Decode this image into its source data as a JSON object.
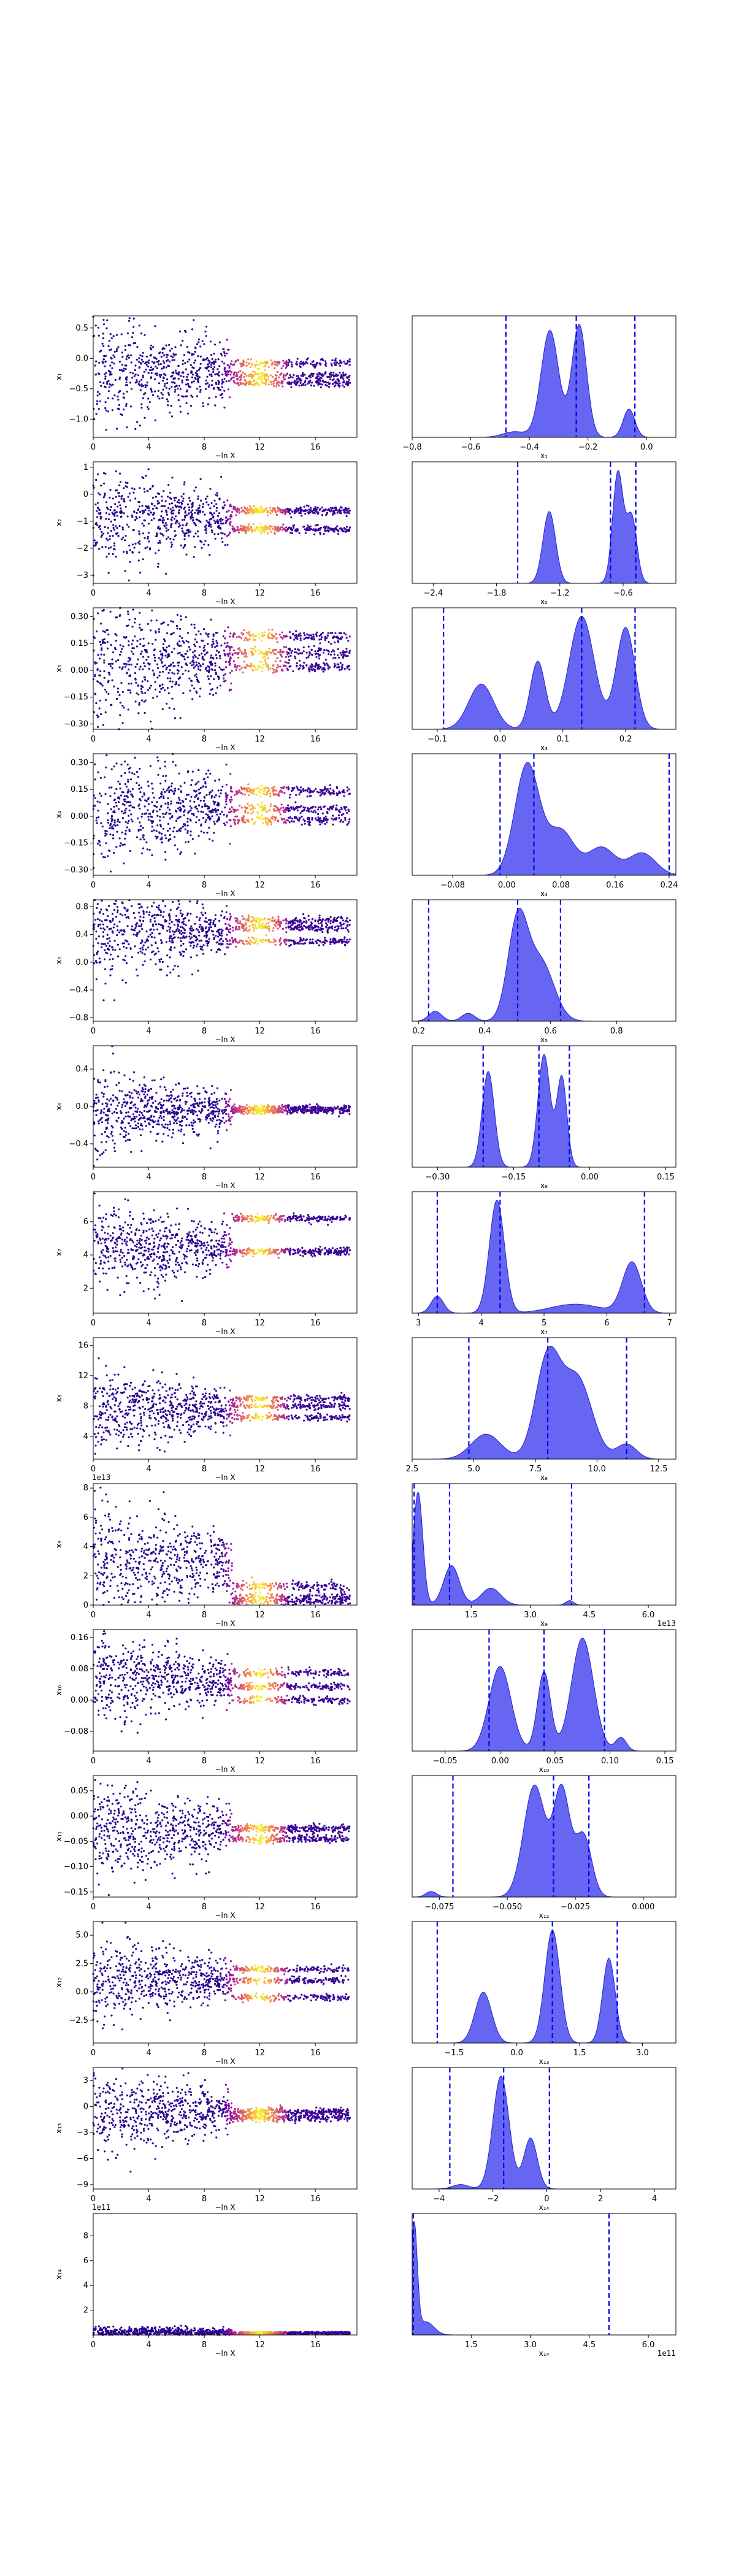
{
  "figure": {
    "background": "#ffffff",
    "scatter_colormap": [
      "#0d0887",
      "#6a00a8",
      "#b12a90",
      "#e16462",
      "#fca636",
      "#f0f921"
    ],
    "kde_fill": "#4b4bf0",
    "kde_line": "#2020d0",
    "vline_color": "#0000ee"
  },
  "chart_data": [
    {
      "row": 1,
      "type": "scatter",
      "xlabel": "−ln X",
      "ylabel": "x₁",
      "xticks": [
        "0",
        "4",
        "8",
        "12",
        "16"
      ],
      "xlim": [
        0,
        19
      ],
      "yticks": [
        "−1.0",
        "−0.5",
        "0.0",
        "0.5"
      ],
      "yticks_v": [
        -1.0,
        -0.5,
        0.0,
        0.5
      ],
      "ylim": [
        -1.3,
        0.7
      ],
      "center": -0.22,
      "spread": 0.45,
      "bands": [
        -0.08,
        -0.28,
        -0.4
      ],
      "seed": 11
    },
    {
      "row": 1,
      "type": "area",
      "xlabel": "x₁",
      "xticks": [
        "−0.8",
        "−0.6",
        "−0.4",
        "−0.2",
        "0.0"
      ],
      "xticks_v": [
        -0.8,
        -0.6,
        -0.4,
        -0.2,
        0.0
      ],
      "xlim": [
        -0.8,
        0.1
      ],
      "peaks": [
        {
          "mu": -0.33,
          "sd": 0.03,
          "h": 0.95
        },
        {
          "mu": -0.23,
          "sd": 0.025,
          "h": 1.0
        },
        {
          "mu": -0.06,
          "sd": 0.02,
          "h": 0.25
        },
        {
          "mu": -0.45,
          "sd": 0.04,
          "h": 0.05
        }
      ],
      "vlines": [
        -0.48,
        -0.24,
        -0.04
      ]
    },
    {
      "row": 2,
      "type": "scatter",
      "xlabel": "−ln X",
      "ylabel": "x₂",
      "xticks": [
        "0",
        "4",
        "8",
        "12",
        "16"
      ],
      "xlim": [
        0,
        19
      ],
      "yticks": [
        "−3",
        "−2",
        "−1",
        "0",
        "1"
      ],
      "yticks_v": [
        -3,
        -2,
        -1,
        0,
        1
      ],
      "ylim": [
        -3.3,
        1.2
      ],
      "center": -0.9,
      "spread": 0.9,
      "bands": [
        -0.6,
        -1.3
      ],
      "seed": 22
    },
    {
      "row": 2,
      "type": "area",
      "xlabel": "x₂",
      "xticks": [
        "−2.4",
        "−1.8",
        "−1.2",
        "−0.6"
      ],
      "xticks_v": [
        -2.4,
        -1.8,
        -1.2,
        -0.6
      ],
      "xlim": [
        -2.6,
        -0.1
      ],
      "peaks": [
        {
          "mu": -1.3,
          "sd": 0.06,
          "h": 0.65
        },
        {
          "mu": -0.65,
          "sd": 0.05,
          "h": 1.0
        },
        {
          "mu": -0.52,
          "sd": 0.05,
          "h": 0.6
        }
      ],
      "vlines": [
        -1.6,
        -0.72,
        -0.48
      ]
    },
    {
      "row": 3,
      "type": "scatter",
      "xlabel": "−ln X",
      "ylabel": "x₃",
      "xticks": [
        "0",
        "4",
        "8",
        "12",
        "16"
      ],
      "xlim": [
        0,
        19
      ],
      "yticks": [
        "−0.30",
        "−0.15",
        "0.00",
        "0.15",
        "0.30"
      ],
      "yticks_v": [
        -0.3,
        -0.15,
        0,
        0.15,
        0.3
      ],
      "ylim": [
        -0.33,
        0.35
      ],
      "center": 0.06,
      "spread": 0.2,
      "bands": [
        0.1,
        0.19,
        0.02
      ],
      "seed": 33
    },
    {
      "row": 3,
      "type": "area",
      "xlabel": "x₃",
      "xticks": [
        "−0.1",
        "0.0",
        "0.1",
        "0.2"
      ],
      "xticks_v": [
        -0.1,
        0,
        0.1,
        0.2
      ],
      "xlim": [
        -0.14,
        0.28
      ],
      "peaks": [
        {
          "mu": -0.03,
          "sd": 0.02,
          "h": 0.4
        },
        {
          "mu": 0.06,
          "sd": 0.012,
          "h": 0.6
        },
        {
          "mu": 0.13,
          "sd": 0.02,
          "h": 1.0
        },
        {
          "mu": 0.2,
          "sd": 0.015,
          "h": 0.9
        }
      ],
      "vlines": [
        -0.09,
        0.13,
        0.215
      ]
    },
    {
      "row": 4,
      "type": "scatter",
      "xlabel": "−ln X",
      "ylabel": "x₄",
      "xticks": [
        "0",
        "4",
        "8",
        "12",
        "16"
      ],
      "xlim": [
        0,
        19
      ],
      "yticks": [
        "−0.30",
        "−0.15",
        "0.00",
        "0.15",
        "0.30"
      ],
      "yticks_v": [
        -0.3,
        -0.15,
        0,
        0.15,
        0.3
      ],
      "ylim": [
        -0.33,
        0.35
      ],
      "center": 0.04,
      "spread": 0.17,
      "bands": [
        0.14,
        0.04,
        -0.02
      ],
      "seed": 44
    },
    {
      "row": 4,
      "type": "area",
      "xlabel": "x₄",
      "xticks": [
        "−0.08",
        "0.00",
        "0.08",
        "0.16",
        "0.24"
      ],
      "xticks_v": [
        -0.08,
        0,
        0.08,
        0.16,
        0.24
      ],
      "xlim": [
        -0.14,
        0.25
      ],
      "peaks": [
        {
          "mu": 0.03,
          "sd": 0.018,
          "h": 1.0
        },
        {
          "mu": 0.08,
          "sd": 0.02,
          "h": 0.4
        },
        {
          "mu": 0.14,
          "sd": 0.02,
          "h": 0.25
        },
        {
          "mu": 0.2,
          "sd": 0.02,
          "h": 0.2
        }
      ],
      "vlines": [
        -0.01,
        0.04,
        0.24
      ]
    },
    {
      "row": 5,
      "type": "scatter",
      "xlabel": "−ln X",
      "ylabel": "x₅",
      "xticks": [
        "0",
        "4",
        "8",
        "12",
        "16"
      ],
      "xlim": [
        0,
        19
      ],
      "yticks": [
        "−0.8",
        "−0.4",
        "0.0",
        "0.4",
        "0.8"
      ],
      "yticks_v": [
        -0.8,
        -0.4,
        0,
        0.4,
        0.8
      ],
      "ylim": [
        -0.85,
        0.9
      ],
      "center": 0.45,
      "spread": 0.35,
      "bands": [
        0.5,
        0.6,
        0.3
      ],
      "seed": 55
    },
    {
      "row": 5,
      "type": "area",
      "xlabel": "x₅",
      "xticks": [
        "0.2",
        "0.4",
        "0.6",
        "0.8"
      ],
      "xticks_v": [
        0.2,
        0.4,
        0.6,
        0.8
      ],
      "xlim": [
        0.18,
        0.98
      ],
      "peaks": [
        {
          "mu": 0.5,
          "sd": 0.03,
          "h": 1.0
        },
        {
          "mu": 0.57,
          "sd": 0.04,
          "h": 0.6
        },
        {
          "mu": 0.25,
          "sd": 0.02,
          "h": 0.1
        },
        {
          "mu": 0.35,
          "sd": 0.02,
          "h": 0.08
        }
      ],
      "vlines": [
        0.23,
        0.5,
        0.63
      ]
    },
    {
      "row": 6,
      "type": "scatter",
      "xlabel": "−ln X",
      "ylabel": "x₆",
      "xticks": [
        "0",
        "4",
        "8",
        "12",
        "16"
      ],
      "xlim": [
        0,
        19
      ],
      "yticks": [
        "−0.4",
        "0.0",
        "0.4"
      ],
      "yticks_v": [
        -0.4,
        0,
        0.4
      ],
      "ylim": [
        -0.65,
        0.65
      ],
      "center": -0.05,
      "spread": 0.22,
      "bands": [
        -0.02,
        -0.05
      ],
      "seed": 66
    },
    {
      "row": 6,
      "type": "area",
      "xlabel": "x₆",
      "xticks": [
        "−0.30",
        "−0.15",
        "0.00",
        "0.15"
      ],
      "xticks_v": [
        -0.3,
        -0.15,
        0,
        0.15
      ],
      "xlim": [
        -0.35,
        0.17
      ],
      "peaks": [
        {
          "mu": -0.2,
          "sd": 0.012,
          "h": 0.85
        },
        {
          "mu": -0.09,
          "sd": 0.012,
          "h": 1.0
        },
        {
          "mu": -0.055,
          "sd": 0.01,
          "h": 0.8
        }
      ],
      "vlines": [
        -0.21,
        -0.1,
        -0.04
      ]
    },
    {
      "row": 7,
      "type": "scatter",
      "xlabel": "−ln X",
      "ylabel": "x₇",
      "xticks": [
        "0",
        "4",
        "8",
        "12",
        "16"
      ],
      "xlim": [
        0,
        19
      ],
      "yticks": [
        "2",
        "4",
        "6"
      ],
      "yticks_v": [
        2,
        4,
        6
      ],
      "ylim": [
        0.5,
        7.8
      ],
      "center": 4.4,
      "spread": 1.4,
      "bands": [
        6.2,
        4.2
      ],
      "seed": 77
    },
    {
      "row": 7,
      "type": "area",
      "xlabel": "x₇",
      "xticks": [
        "3",
        "4",
        "5",
        "6",
        "7"
      ],
      "xticks_v": [
        3,
        4,
        5,
        6,
        7
      ],
      "xlim": [
        2.9,
        7.1
      ],
      "peaks": [
        {
          "mu": 4.25,
          "sd": 0.12,
          "h": 1.0
        },
        {
          "mu": 6.4,
          "sd": 0.15,
          "h": 0.45
        },
        {
          "mu": 3.3,
          "sd": 0.1,
          "h": 0.15
        },
        {
          "mu": 5.5,
          "sd": 0.4,
          "h": 0.08
        }
      ],
      "vlines": [
        3.3,
        4.3,
        6.6
      ]
    },
    {
      "row": 8,
      "type": "scatter",
      "xlabel": "−ln X",
      "ylabel": "x₈",
      "xticks": [
        "0",
        "4",
        "8",
        "12",
        "16"
      ],
      "xlim": [
        0,
        19
      ],
      "yticks": [
        "4",
        "8",
        "12",
        "16"
      ],
      "yticks_v": [
        4,
        8,
        12,
        16
      ],
      "ylim": [
        1,
        17
      ],
      "center": 7.5,
      "spread": 2.8,
      "bands": [
        8,
        6.5,
        9
      ],
      "seed": 88
    },
    {
      "row": 8,
      "type": "area",
      "xlabel": "x₈",
      "xticks": [
        "2.5",
        "5.0",
        "7.5",
        "10.0",
        "12.5"
      ],
      "xticks_v": [
        2.5,
        5,
        7.5,
        10,
        12.5
      ],
      "xlim": [
        2.5,
        13.2
      ],
      "peaks": [
        {
          "mu": 8.0,
          "sd": 0.5,
          "h": 1.0
        },
        {
          "mu": 9.2,
          "sd": 0.6,
          "h": 0.8
        },
        {
          "mu": 5.5,
          "sd": 0.6,
          "h": 0.25
        },
        {
          "mu": 11.2,
          "sd": 0.4,
          "h": 0.15
        }
      ],
      "vlines": [
        4.8,
        8.0,
        11.2
      ]
    },
    {
      "row": 9,
      "type": "scatter",
      "xlabel": "−ln X",
      "ylabel": "x₉",
      "offset": "1e13",
      "xticks": [
        "0",
        "4",
        "8",
        "12",
        "16"
      ],
      "xlim": [
        0,
        19
      ],
      "yticks": [
        "0",
        "2",
        "4",
        "6",
        "8"
      ],
      "yticks_v": [
        0,
        2,
        4,
        6,
        8
      ],
      "ylim": [
        0,
        8.3
      ],
      "center": 3,
      "spread": 2.2,
      "bands": [
        0.5,
        1.3,
        0.2
      ],
      "seed": 99
    },
    {
      "row": 9,
      "type": "area",
      "xlabel": "x₉",
      "offset": "1e13",
      "xticks": [
        "1.5",
        "3.0",
        "4.5",
        "6.0"
      ],
      "xticks_v": [
        1.5,
        3,
        4.5,
        6
      ],
      "xlim": [
        0,
        6.7
      ],
      "peaks": [
        {
          "mu": 0.15,
          "sd": 0.12,
          "h": 1.0
        },
        {
          "mu": 1.0,
          "sd": 0.2,
          "h": 0.35
        },
        {
          "mu": 2.0,
          "sd": 0.25,
          "h": 0.15
        },
        {
          "mu": 4.0,
          "sd": 0.1,
          "h": 0.04
        }
      ],
      "vlines": [
        0.05,
        0.95,
        4.05
      ]
    },
    {
      "row": 10,
      "type": "scatter",
      "xlabel": "−ln X",
      "ylabel": "x₁₀",
      "xticks": [
        "0",
        "4",
        "8",
        "12",
        "16"
      ],
      "xlim": [
        0,
        19
      ],
      "yticks": [
        "−0.08",
        "0.00",
        "0.08",
        "0.16"
      ],
      "yticks_v": [
        -0.08,
        0,
        0.08,
        0.16
      ],
      "ylim": [
        -0.13,
        0.18
      ],
      "center": 0.05,
      "spread": 0.06,
      "bands": [
        0.07,
        0.035,
        0.0
      ],
      "seed": 111
    },
    {
      "row": 10,
      "type": "area",
      "xlabel": "x₁₀",
      "xticks": [
        "−0.05",
        "0.00",
        "0.05",
        "0.10",
        "0.15"
      ],
      "xticks_v": [
        -0.05,
        0,
        0.05,
        0.1,
        0.15
      ],
      "xlim": [
        -0.08,
        0.16
      ],
      "peaks": [
        {
          "mu": 0.0,
          "sd": 0.01,
          "h": 0.75
        },
        {
          "mu": 0.04,
          "sd": 0.006,
          "h": 0.7
        },
        {
          "mu": 0.075,
          "sd": 0.01,
          "h": 1.0
        },
        {
          "mu": 0.11,
          "sd": 0.005,
          "h": 0.12
        }
      ],
      "vlines": [
        -0.01,
        0.04,
        0.095
      ]
    },
    {
      "row": 11,
      "type": "scatter",
      "xlabel": "−ln X",
      "ylabel": "x₁₁",
      "xticks": [
        "0",
        "4",
        "8",
        "12",
        "16"
      ],
      "xlim": [
        0,
        19
      ],
      "yticks": [
        "−0.15",
        "−0.10",
        "−0.05",
        "0.00",
        "0.05"
      ],
      "yticks_v": [
        -0.15,
        -0.1,
        -0.05,
        0,
        0.05
      ],
      "ylim": [
        -0.16,
        0.08
      ],
      "center": -0.03,
      "spread": 0.05,
      "bands": [
        -0.025,
        -0.045
      ],
      "seed": 122
    },
    {
      "row": 11,
      "type": "area",
      "xlabel": "x₁₂",
      "xticks": [
        "−0.075",
        "−0.050",
        "−0.025",
        "0.000"
      ],
      "xticks_v": [
        -0.075,
        -0.05,
        -0.025,
        0
      ],
      "xlim": [
        -0.085,
        0.012
      ],
      "peaks": [
        {
          "mu": -0.04,
          "sd": 0.004,
          "h": 1.0
        },
        {
          "mu": -0.03,
          "sd": 0.003,
          "h": 0.95
        },
        {
          "mu": -0.022,
          "sd": 0.003,
          "h": 0.55
        },
        {
          "mu": -0.078,
          "sd": 0.002,
          "h": 0.05
        }
      ],
      "vlines": [
        -0.07,
        -0.033,
        -0.02
      ]
    },
    {
      "row": 12,
      "type": "scatter",
      "xlabel": "−ln X",
      "ylabel": "x₁₂",
      "xticks": [
        "0",
        "4",
        "8",
        "12",
        "16"
      ],
      "xlim": [
        0,
        19
      ],
      "yticks": [
        "−2.5",
        "0.0",
        "2.5",
        "5.0"
      ],
      "yticks_v": [
        -2.5,
        0,
        2.5,
        5
      ],
      "ylim": [
        -4.5,
        6.2
      ],
      "center": 1.0,
      "spread": 1.8,
      "bands": [
        1.0,
        2.0,
        -0.5
      ],
      "seed": 133
    },
    {
      "row": 12,
      "type": "area",
      "xlabel": "x₁₃",
      "xticks": [
        "−1.5",
        "0.0",
        "1.5",
        "3.0"
      ],
      "xticks_v": [
        -1.5,
        0,
        1.5,
        3
      ],
      "xlim": [
        -2.5,
        3.8
      ],
      "peaks": [
        {
          "mu": 0.85,
          "sd": 0.18,
          "h": 1.0
        },
        {
          "mu": 2.2,
          "sd": 0.15,
          "h": 0.75
        },
        {
          "mu": -0.8,
          "sd": 0.2,
          "h": 0.45
        }
      ],
      "vlines": [
        -1.9,
        0.85,
        2.4
      ]
    },
    {
      "row": 13,
      "type": "scatter",
      "xlabel": "−ln X",
      "ylabel": "x₁₃",
      "xticks": [
        "0",
        "4",
        "8",
        "12",
        "16"
      ],
      "xlim": [
        0,
        19
      ],
      "yticks": [
        "−9",
        "−6",
        "−3",
        "0",
        "3"
      ],
      "yticks_v": [
        -9,
        -6,
        -3,
        0,
        3
      ],
      "ylim": [
        -9.5,
        4.5
      ],
      "center": -0.5,
      "spread": 2.5,
      "bands": [
        -0.6,
        -1.3
      ],
      "seed": 144
    },
    {
      "row": 13,
      "type": "area",
      "xlabel": "x₁₄",
      "xticks": [
        "−4",
        "−2",
        "0",
        "2",
        "4"
      ],
      "xticks_v": [
        -4,
        -2,
        0,
        2,
        4
      ],
      "xlim": [
        -5,
        4.8
      ],
      "peaks": [
        {
          "mu": -1.7,
          "sd": 0.3,
          "h": 1.0
        },
        {
          "mu": -0.6,
          "sd": 0.25,
          "h": 0.45
        },
        {
          "mu": -3.2,
          "sd": 0.3,
          "h": 0.04
        }
      ],
      "vlines": [
        -3.6,
        -1.6,
        0.1
      ]
    },
    {
      "row": 14,
      "type": "scatter",
      "xlabel": "−ln X",
      "ylabel": "x₁₄",
      "offset": "1e11",
      "xticks": [
        "0",
        "4",
        "8",
        "12",
        "16"
      ],
      "xlim": [
        0,
        19
      ],
      "yticks": [
        "2",
        "4",
        "6",
        "8"
      ],
      "yticks_v": [
        2,
        4,
        6,
        8
      ],
      "ylim": [
        0,
        9.8
      ],
      "center": 0.2,
      "spread": 0.3,
      "bands": [
        0.1,
        0.2
      ],
      "seed": 155
    },
    {
      "row": 14,
      "type": "area",
      "xlabel": "x₁₄",
      "offset": "1e11",
      "xticks": [
        "1.5",
        "3.0",
        "4.5",
        "6.0"
      ],
      "xticks_v": [
        1.5,
        3,
        4.5,
        6
      ],
      "xlim": [
        0,
        6.7
      ],
      "peaks": [
        {
          "mu": 0.05,
          "sd": 0.08,
          "h": 1.0
        },
        {
          "mu": 0.35,
          "sd": 0.2,
          "h": 0.12
        }
      ],
      "vlines": [
        0.03,
        5.0
      ]
    }
  ]
}
